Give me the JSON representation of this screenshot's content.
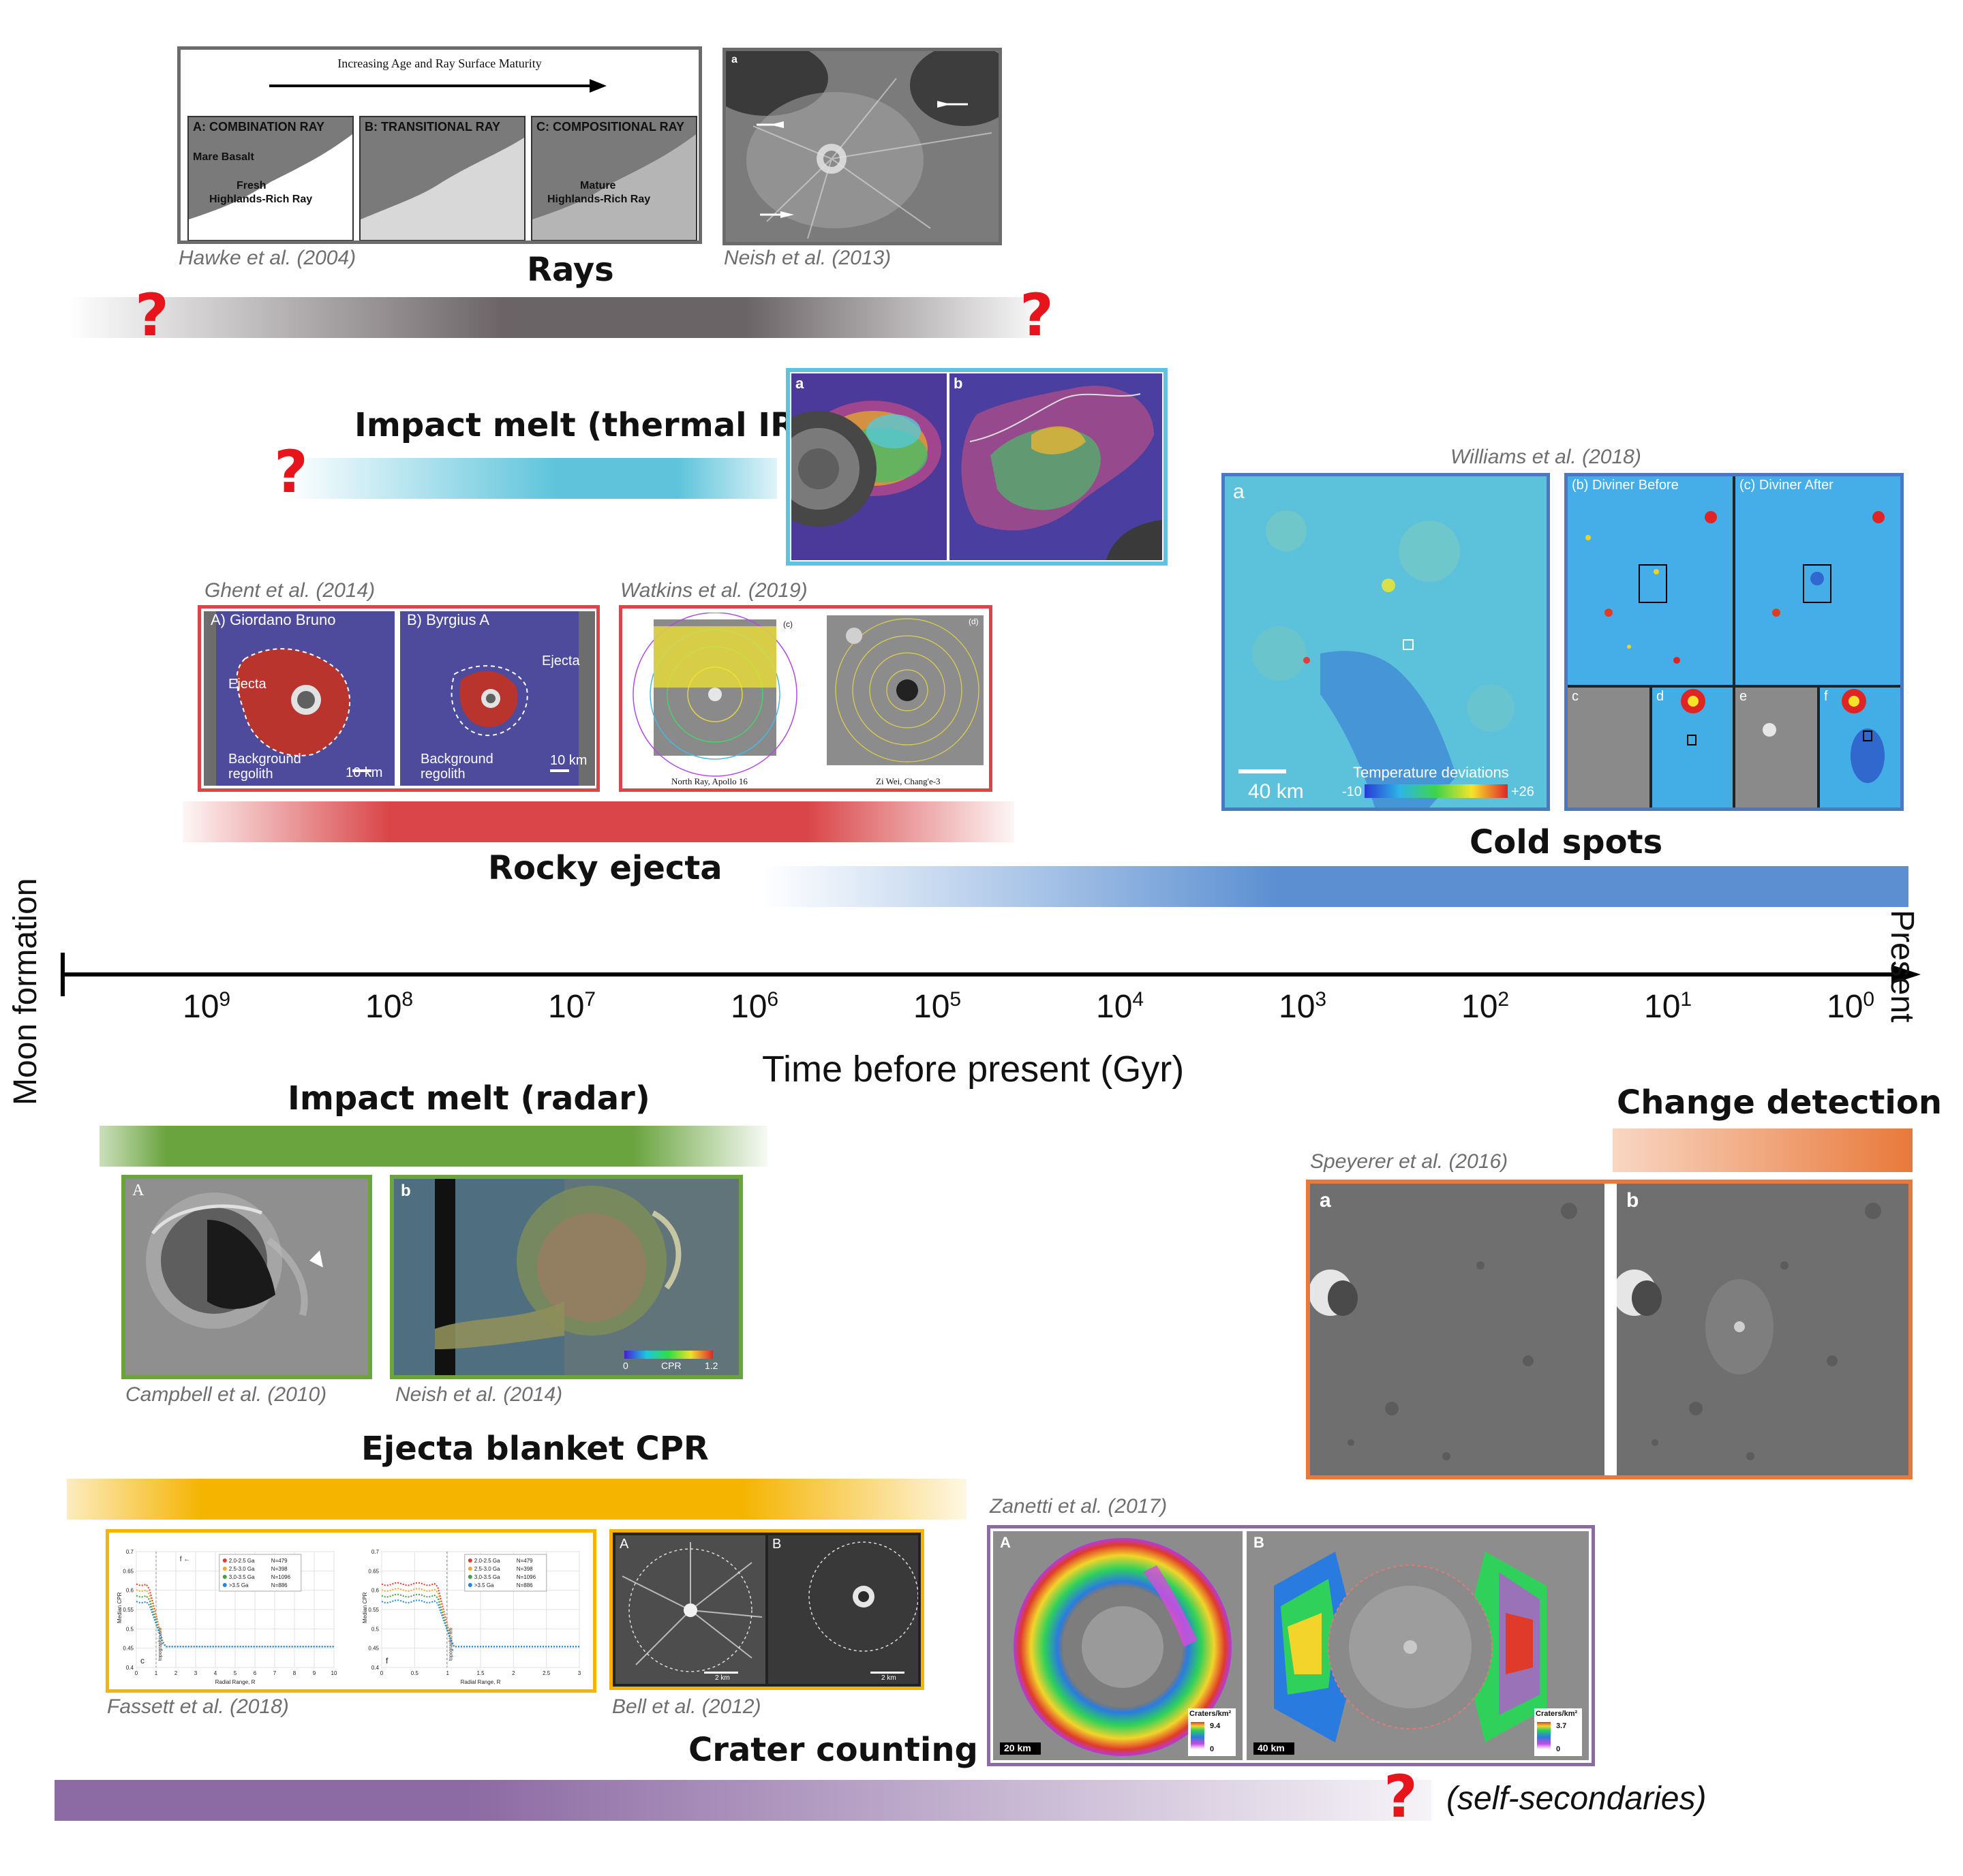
{
  "axis": {
    "left_label": "Moon formation",
    "right_label": "Present",
    "title": "Time before present (Gyr)",
    "ticks": [
      {
        "base": "10",
        "exp": "9"
      },
      {
        "base": "10",
        "exp": "8"
      },
      {
        "base": "10",
        "exp": "7"
      },
      {
        "base": "10",
        "exp": "6"
      },
      {
        "base": "10",
        "exp": "5"
      },
      {
        "base": "10",
        "exp": "4"
      },
      {
        "base": "10",
        "exp": "3"
      },
      {
        "base": "10",
        "exp": "2"
      },
      {
        "base": "10",
        "exp": "1"
      },
      {
        "base": "10",
        "exp": "0"
      }
    ]
  },
  "question_mark": "?",
  "rays": {
    "title": "Rays",
    "color": "#6b6466",
    "cite_left": "Hawke et al. (2004)",
    "cite_right": "Neish et al. (2013)",
    "hawke": {
      "header": "Increasing Age and Ray Surface Maturity",
      "panel_a": "A: COMBINATION RAY",
      "panel_b": "B: TRANSITIONAL RAY",
      "panel_c": "C: COMPOSITIONAL RAY",
      "mare": "Mare Basalt",
      "fresh": "Fresh",
      "fresh_sub": "Highlands-Rich Ray",
      "mature": "Mature",
      "mature_sub": "Highlands-Rich Ray"
    },
    "neish_panel": "a"
  },
  "thermal": {
    "title": "Impact melt (thermal IR)",
    "color": "#5fc4db",
    "panel_a": "a",
    "panel_b": "b"
  },
  "cold": {
    "title": "Cold spots",
    "color": "#5b8fd1",
    "cite": "Williams et al. (2018)",
    "panel_a": "a",
    "scale": "40 km",
    "temp_label": "Temperature deviations",
    "temp_min": "-10",
    "temp_max": "+26",
    "before": "(b) Diviner Before",
    "after": "(c) Diviner After",
    "c": "c",
    "d": "d",
    "e": "e",
    "f": "f"
  },
  "rocky": {
    "title": "Rocky ejecta",
    "color": "#d94548",
    "cite_ghent": "Ghent et al. (2014)",
    "cite_watkins": "Watkins et al. (2019)",
    "ghent_a": "A) Giordano Bruno",
    "ghent_b": "B) Byrgius A",
    "ejecta": "Ejecta",
    "background": "Background",
    "regolith": "regolith",
    "scale": "10 km",
    "watkins_c": "(c)",
    "watkins_d": "(d)",
    "north_ray": "North Ray, Apollo 16",
    "zi_wei": "Zi Wei, Chang'e-3"
  },
  "radar": {
    "title": "Impact melt (radar)",
    "color": "#6aa43f",
    "cite_left": "Campbell et al. (2010)",
    "cite_right": "Neish et al. (2014)",
    "panel_a": "A",
    "panel_b": "b",
    "cpr": "CPR",
    "cpr_min": "0",
    "cpr_max": "1.2"
  },
  "change": {
    "title": "Change detection",
    "color": "#e8793a",
    "cite": "Speyerer et al. (2016)",
    "panel_a": "a",
    "panel_b": "b"
  },
  "cpr": {
    "title": "Ejecta blanket CPR",
    "color": "#f4b400",
    "cite_fassett": "Fassett et al. (2018)",
    "cite_bell": "Bell et al. (2012)",
    "legend": [
      "2.0-2.5 Ga",
      "2.5-3.0 Ga",
      "3.0-3.5 Ga",
      ">3.5 Ga"
    ],
    "legend_n": [
      "N=479",
      "N=398",
      "N=1096",
      "N=886"
    ],
    "legend_colors": [
      "#e53935",
      "#f9a825",
      "#43a047",
      "#1e88e5"
    ],
    "ylabel": "Median CPR",
    "xlabel": "Radial Range, R",
    "yticks": [
      "0.7",
      "0.65",
      "0.6",
      "0.55",
      "0.5",
      "0.45",
      "0.4"
    ],
    "xticks_c": [
      "0",
      "1",
      "2",
      "3",
      "4",
      "5",
      "6",
      "7",
      "8",
      "9",
      "10"
    ],
    "xticks_f": [
      "0",
      "0.5",
      "1",
      "1.5",
      "2",
      "2.5",
      "3"
    ],
    "rim_label": "topographic rim",
    "panel_c": "c",
    "panel_f": "f",
    "arrow_label": "f ←",
    "bell_a": "A",
    "bell_b": "B",
    "bell_scale_a": "2 km",
    "bell_scale_b": "2 km"
  },
  "crater": {
    "title": "Crater counting",
    "color": "#8c6aa3",
    "cite": "Zanetti et al. (2017)",
    "note": "(self-secondaries)",
    "panel_a": "A",
    "panel_b": "B",
    "scale_a": "20 km",
    "scale_b": "40 km",
    "cbar_label": "Craters/km²",
    "cbar_a_max": "9.4",
    "cbar_a_min": "0",
    "cbar_b_max": "3.7",
    "cbar_b_min": "0"
  }
}
